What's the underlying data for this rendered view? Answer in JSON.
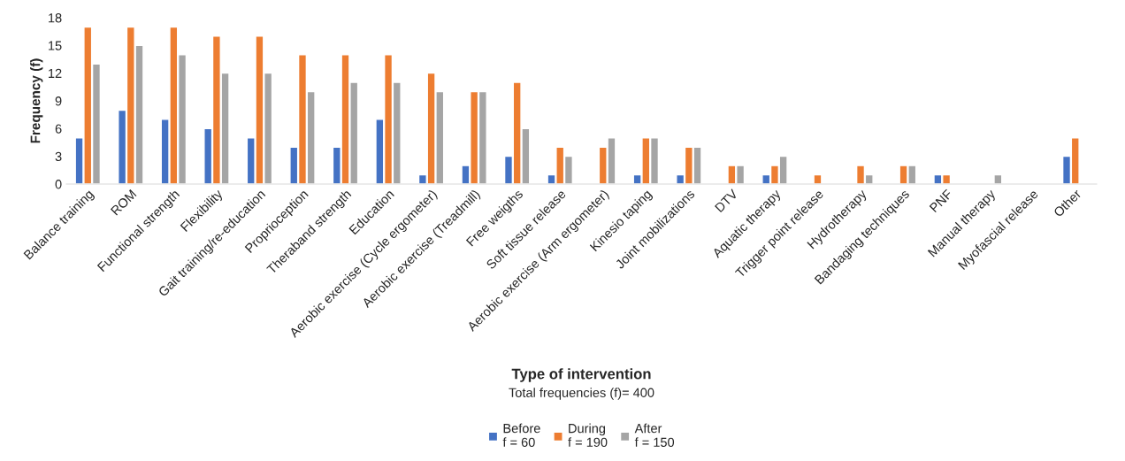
{
  "chart_data": {
    "type": "bar",
    "xlabel": "Type of intervention",
    "ylabel": "Frequency (f)",
    "annotations": [
      "Total frequencies (f)= 400"
    ],
    "categories": [
      "Balance training",
      "ROM",
      "Functional strength",
      "Flexibility",
      "Gait training/re-education",
      "Proprioception",
      "Theraband strength",
      "Education",
      "Aerobic exercise (Cycle ergometer)",
      "Aerobic exercise (Treadmill)",
      "Free weigths",
      "Soft tissue release",
      "Aerobic exercise (Arm ergometer)",
      "Kinesio taping",
      "Joint mobilizations",
      "DTV",
      "Aquatic therapy",
      "Trigger point release",
      "Hydrotherapy",
      "Bandaging techniques",
      "PNF",
      "Manual therapy",
      "Myofascial release",
      "Other"
    ],
    "series": [
      {
        "name": "Before\nf = 60",
        "color": "#4472c4",
        "values": [
          5,
          8,
          7,
          6,
          5,
          4,
          4,
          7,
          1,
          2,
          3,
          1,
          null,
          1,
          1,
          null,
          1,
          null,
          null,
          null,
          1,
          null,
          null,
          3
        ]
      },
      {
        "name": "During\nf = 190",
        "color": "#ed7d31",
        "values": [
          17,
          17,
          17,
          16,
          16,
          14,
          14,
          14,
          12,
          10,
          11,
          4,
          4,
          5,
          4,
          2,
          2,
          1,
          2,
          2,
          1,
          null,
          null,
          5
        ]
      },
      {
        "name": "After\nf = 150",
        "color": "#a5a5a5",
        "values": [
          13,
          15,
          14,
          12,
          12,
          10,
          11,
          11,
          10,
          10,
          6,
          3,
          5,
          5,
          4,
          2,
          3,
          null,
          1,
          2,
          null,
          1,
          null,
          null
        ]
      }
    ],
    "ylim": [
      0,
      18
    ],
    "yticks": [
      0,
      3,
      6,
      9,
      12,
      15,
      18
    ],
    "grid": false,
    "legend": "bottom"
  }
}
